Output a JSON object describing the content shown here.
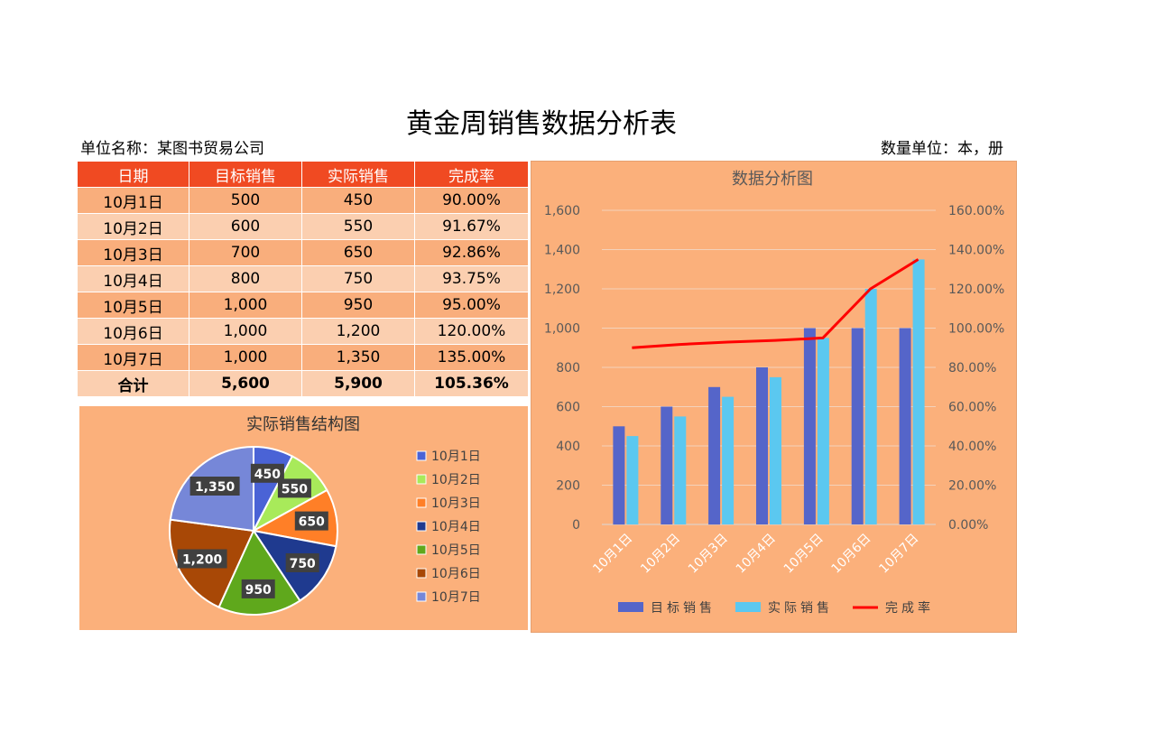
{
  "page": {
    "title": "黄金周销售数据分析表",
    "unit_name": "单位名称：某图书贸易公司",
    "qty_unit": "数量单位：本，册"
  },
  "table": {
    "headers": [
      "日期",
      "目标销售",
      "实际销售",
      "完成率"
    ],
    "rows": [
      [
        "10月1日",
        "500",
        "450",
        "90.00%"
      ],
      [
        "10月2日",
        "600",
        "550",
        "91.67%"
      ],
      [
        "10月3日",
        "700",
        "650",
        "92.86%"
      ],
      [
        "10月4日",
        "800",
        "750",
        "93.75%"
      ],
      [
        "10月5日",
        "1,000",
        "950",
        "95.00%"
      ],
      [
        "10月6日",
        "1,000",
        "1,200",
        "120.00%"
      ],
      [
        "10月7日",
        "1,000",
        "1,350",
        "135.00%"
      ]
    ],
    "total": [
      "合计",
      "5,600",
      "5,900",
      "105.36%"
    ]
  },
  "chart_data": [
    {
      "type": "pie",
      "title": "实际销售结构图",
      "categories": [
        "10月1日",
        "10月2日",
        "10月3日",
        "10月4日",
        "10月5日",
        "10月6日",
        "10月7日"
      ],
      "values": [
        450,
        550,
        650,
        750,
        950,
        1200,
        1350
      ],
      "data_labels": [
        "450",
        "550",
        "650",
        "750",
        "950",
        "1,200",
        "1,350"
      ],
      "colors": [
        "#4a63d6",
        "#a8ea5a",
        "#ff7f27",
        "#1f3a8f",
        "#5fa81c",
        "#a84806",
        "#7687d8"
      ],
      "legend_position": "right"
    },
    {
      "type": "bar",
      "title": "数据分析图",
      "categories": [
        "10月1日",
        "10月2日",
        "10月3日",
        "10月4日",
        "10月5日",
        "10月6日",
        "10月7日"
      ],
      "series": [
        {
          "name": "目标销售",
          "type": "bar",
          "axis": "left",
          "color": "#5565c9",
          "values": [
            500,
            600,
            700,
            800,
            1000,
            1000,
            1000
          ]
        },
        {
          "name": "实际销售",
          "type": "bar",
          "axis": "left",
          "color": "#5bc8f0",
          "values": [
            450,
            550,
            650,
            750,
            950,
            1200,
            1350
          ]
        },
        {
          "name": "完成率",
          "type": "line",
          "axis": "right",
          "color": "#ff0000",
          "values": [
            0.9,
            0.9167,
            0.9286,
            0.9375,
            0.95,
            1.2,
            1.35
          ]
        }
      ],
      "ylim": [
        0,
        1600
      ],
      "y_ticks": [
        "0",
        "200",
        "400",
        "600",
        "800",
        "1,000",
        "1,200",
        "1,400",
        "1,600"
      ],
      "y2lim": [
        0,
        1.6
      ],
      "y2_ticks": [
        "0.00%",
        "20.00%",
        "40.00%",
        "60.00%",
        "80.00%",
        "100.00%",
        "120.00%",
        "140.00%",
        "160.00%"
      ],
      "grid": true,
      "legend_position": "bottom"
    }
  ]
}
